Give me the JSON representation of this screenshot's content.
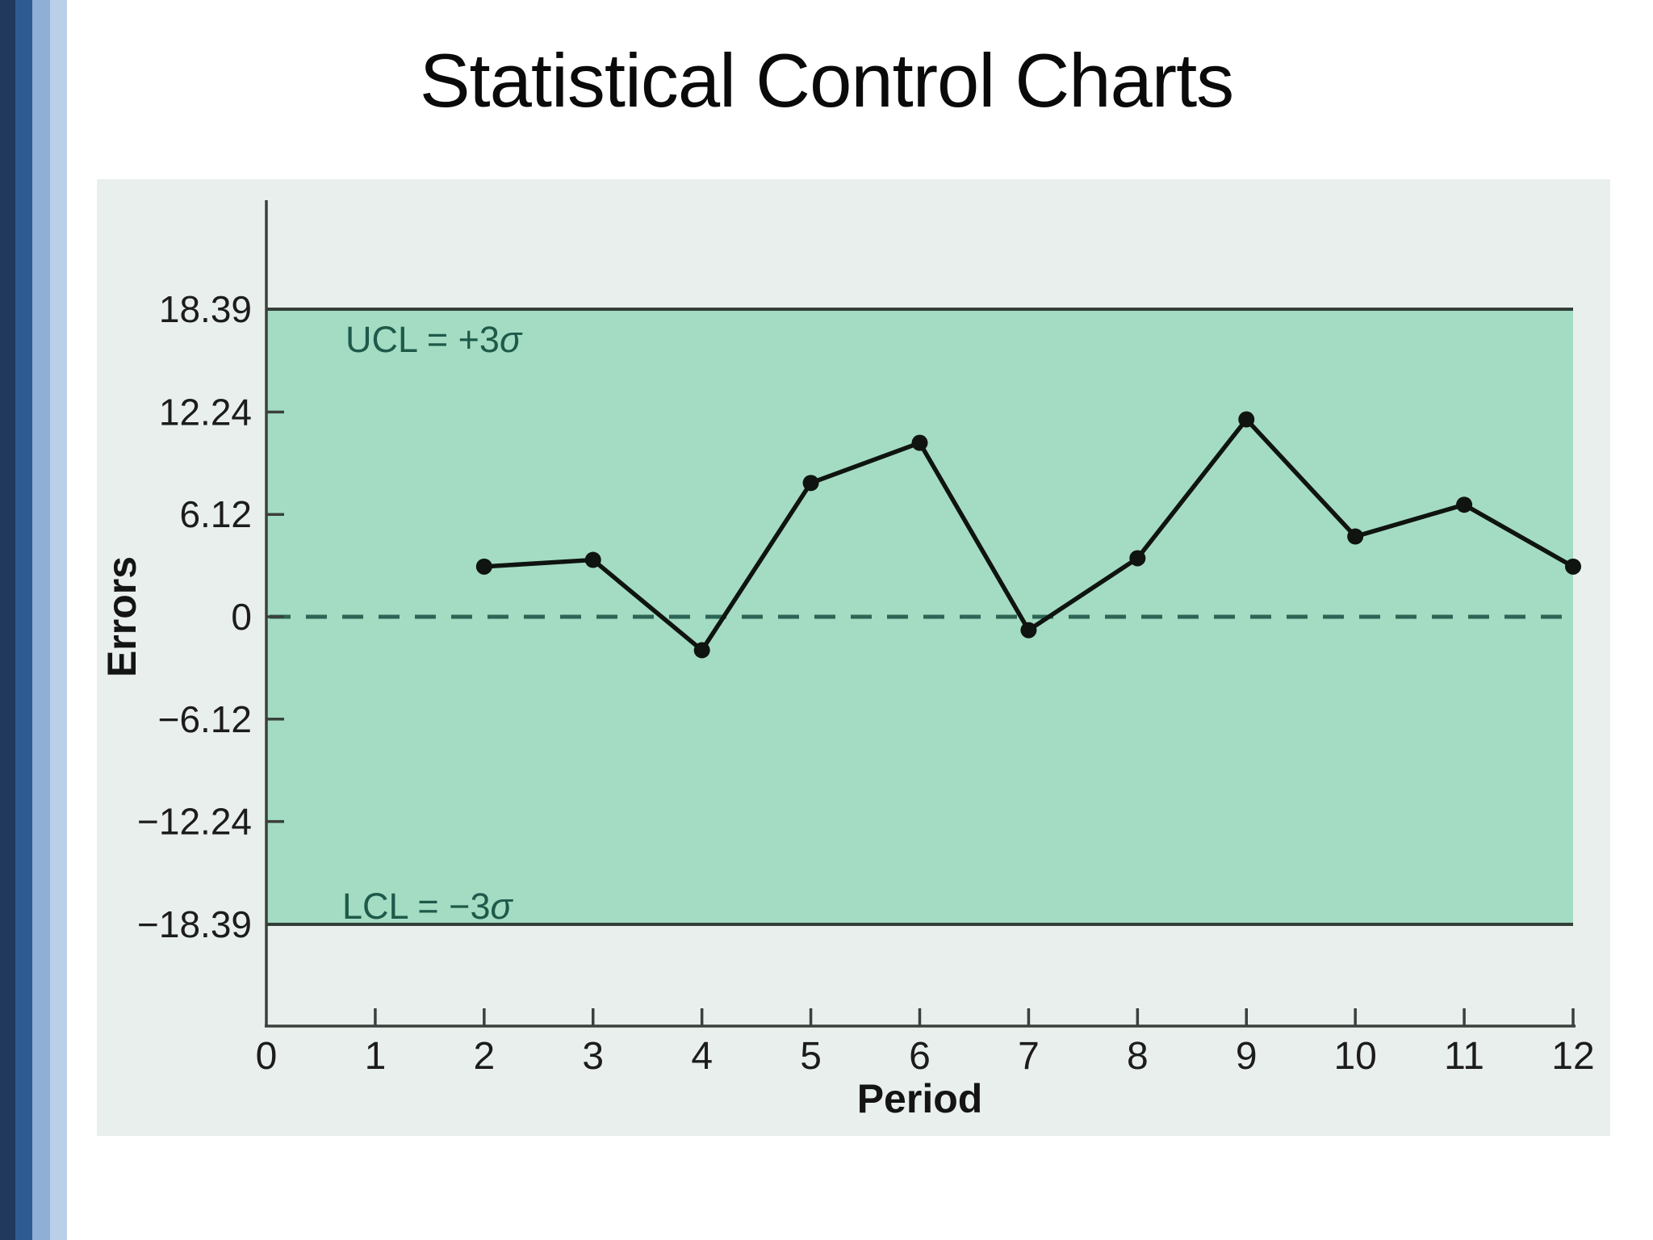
{
  "slide": {
    "title": "Statistical Control Charts"
  },
  "colors": {
    "band_fill": "#a4dcc3",
    "panel_bg": "#e9efec",
    "axis_line": "#3a403c",
    "limit_line": "#333f39",
    "center_line": "#2d6455",
    "series_line": "#0f1410",
    "marker_fill": "#0f1410",
    "limit_text": "#1d5a4a",
    "tick_text": "#1c1c1c",
    "title_text": "#0a0a0a",
    "sidebar_stripes": [
      "#20395c",
      "#2e5c92",
      "#8fafd6",
      "#bad0e8"
    ]
  },
  "chart_data": {
    "type": "line",
    "title": "Statistical Control Charts",
    "xlabel": "Period",
    "ylabel": "Errors",
    "series": [
      {
        "name": "Errors",
        "x": [
          2,
          3,
          4,
          5,
          6,
          7,
          8,
          9,
          10,
          11,
          12
        ],
        "values": [
          3.0,
          3.4,
          -2.0,
          8.0,
          10.4,
          -0.8,
          3.5,
          11.8,
          4.8,
          6.7,
          3.0
        ]
      }
    ],
    "xlim": [
      0,
      12
    ],
    "ylim": [
      -18.39,
      18.39
    ],
    "x_ticks": [
      0,
      1,
      2,
      3,
      4,
      5,
      6,
      7,
      8,
      9,
      10,
      11,
      12
    ],
    "x_tick_labels": [
      "0",
      "1",
      "2",
      "3",
      "4",
      "5",
      "6",
      "7",
      "8",
      "9",
      "10",
      "11",
      "12"
    ],
    "y_ticks": [
      18.39,
      12.24,
      6.12,
      0,
      -6.12,
      -12.24,
      -18.39
    ],
    "y_tick_labels": [
      "18.39",
      "12.24",
      "6.12",
      "0",
      "−6.12",
      "−12.24",
      "−18.39"
    ],
    "inner_y_ticks": [
      12.24,
      6.12,
      0,
      -6.12,
      -12.24
    ],
    "ucl": {
      "value": 18.39,
      "label": "UCL = +3σ"
    },
    "lcl": {
      "value": -18.39,
      "label": "LCL = −3σ"
    },
    "center_line": {
      "value": 0,
      "style": "dashed"
    },
    "grid": false,
    "legend": null,
    "marker": "circle"
  }
}
